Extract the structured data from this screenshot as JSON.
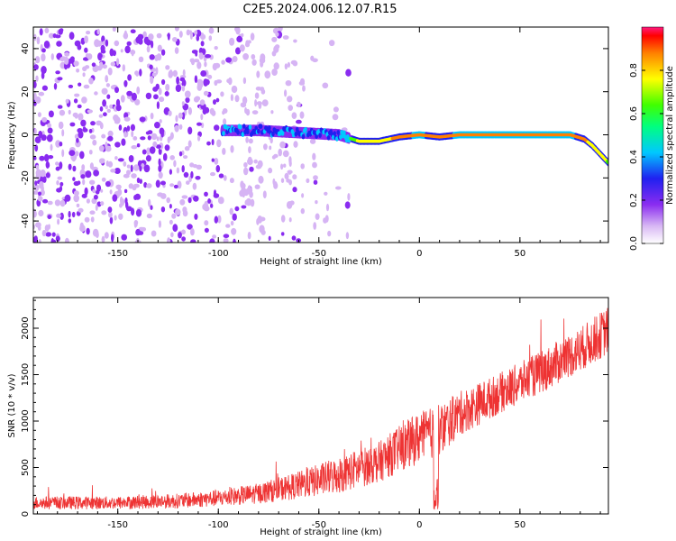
{
  "title": "C2E5.2024.006.12.07.R15",
  "chart_data": [
    {
      "type": "heatmap",
      "name": "spectrogram",
      "xlabel": "Height of straight line (km)",
      "ylabel": "Frequency (Hz)",
      "xlim": [
        -192,
        94
      ],
      "ylim": [
        -50,
        50
      ],
      "xticks": [
        -150,
        -100,
        -50,
        0,
        50
      ],
      "xtick_labels": [
        "-150",
        "-100",
        "-50",
        "0",
        "50"
      ],
      "yticks": [
        -40,
        -20,
        0,
        20,
        40
      ],
      "ytick_labels": [
        "-40",
        "-20",
        "0",
        "20",
        "40"
      ],
      "colorbar": {
        "label": "Normalized spectral amplitude",
        "range": [
          0,
          1
        ],
        "ticks": [
          0.0,
          0.2,
          0.4,
          0.6,
          0.8
        ],
        "tick_labels": [
          "0.0",
          "0.2",
          "0.4",
          "0.6",
          "0.8"
        ]
      },
      "signal_track": {
        "heights": [
          -98,
          -80,
          -60,
          -40,
          -30,
          -20,
          -10,
          0,
          10,
          20,
          40,
          60,
          75,
          82,
          86,
          90,
          94
        ],
        "frequency_hz": [
          2,
          2,
          1,
          0,
          -3,
          -3,
          -1,
          0,
          -1,
          0,
          0,
          0,
          0,
          -2,
          -5,
          -9,
          -13
        ],
        "amplitude": [
          0.45,
          0.45,
          0.45,
          0.4,
          0.8,
          0.85,
          0.9,
          0.95,
          0.9,
          0.95,
          0.95,
          0.95,
          0.95,
          0.9,
          0.85,
          0.8,
          0.75
        ]
      }
    },
    {
      "type": "line",
      "name": "snr",
      "xlabel": "Height of straight line (km)",
      "ylabel": "SNR (10 * v/v)",
      "xlim": [
        -192,
        94
      ],
      "ylim": [
        0,
        2330
      ],
      "xticks": [
        -150,
        -100,
        -50,
        0,
        50
      ],
      "xtick_labels": [
        "-150",
        "-100",
        "-50",
        "0",
        "50"
      ],
      "yticks": [
        0,
        500,
        1000,
        1500,
        2000
      ],
      "ytick_labels": [
        "0",
        "500",
        "1000",
        "1500",
        "2000"
      ],
      "color": "#ee3333",
      "trend_x": [
        -192,
        -150,
        -120,
        -100,
        -80,
        -60,
        -40,
        -20,
        -10,
        0,
        10,
        20,
        40,
        60,
        80,
        94
      ],
      "trend_y": [
        120,
        120,
        140,
        170,
        220,
        310,
        420,
        560,
        700,
        820,
        900,
        1080,
        1300,
        1520,
        1770,
        1980
      ],
      "noise_amplitude": [
        70,
        70,
        80,
        90,
        110,
        150,
        200,
        220,
        250,
        280,
        280,
        240,
        220,
        230,
        240,
        260
      ]
    }
  ]
}
